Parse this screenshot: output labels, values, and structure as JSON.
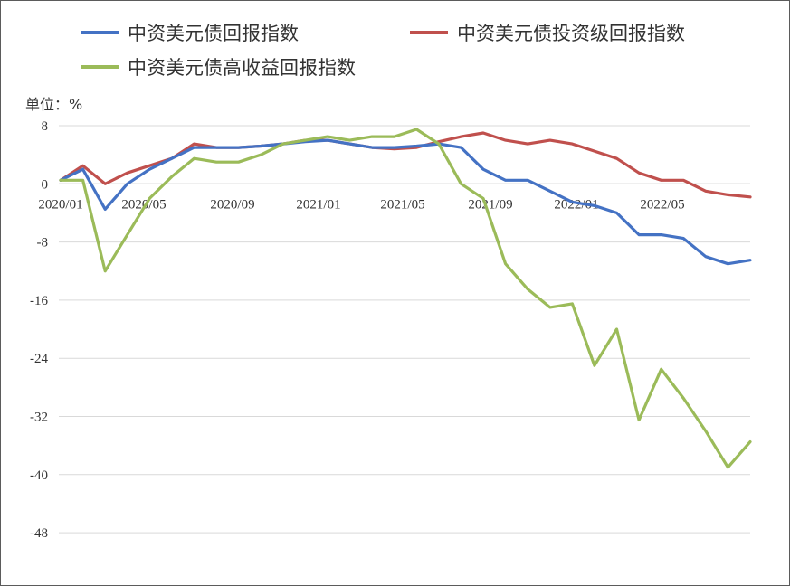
{
  "chart_data": {
    "type": "line",
    "unit_label": "单位：%",
    "x_tick_labels": [
      "2020/01",
      "2020/05",
      "2020/09",
      "2021/01",
      "2021/05",
      "2021/09",
      "2022/01",
      "2022/05"
    ],
    "y_ticks": [
      8,
      0,
      -8,
      -16,
      -24,
      -32,
      -40,
      -48
    ],
    "ylim": [
      -48,
      8
    ],
    "grid": true,
    "legend_position": "top",
    "colors": {
      "composite": "#4472c4",
      "investment_grade": "#c0504d",
      "high_yield": "#9bbb59"
    },
    "x": [
      "2020-01",
      "2020-02",
      "2020-03",
      "2020-04",
      "2020-05",
      "2020-06",
      "2020-07",
      "2020-08",
      "2020-09",
      "2020-10",
      "2020-11",
      "2020-12",
      "2021-01",
      "2021-02",
      "2021-03",
      "2021-04",
      "2021-05",
      "2021-06",
      "2021-07",
      "2021-08",
      "2021-09",
      "2021-10",
      "2021-11",
      "2021-12",
      "2022-01",
      "2022-02",
      "2022-03",
      "2022-04",
      "2022-05",
      "2022-06",
      "2022-07",
      "2022-08"
    ],
    "series": [
      {
        "name": "中资美元债回报指数",
        "key": "composite",
        "values": [
          0.5,
          2.0,
          -3.5,
          0.0,
          2.0,
          3.5,
          5.0,
          5.0,
          5.0,
          5.2,
          5.5,
          5.8,
          6.0,
          5.5,
          5.0,
          5.0,
          5.2,
          5.5,
          5.0,
          2.0,
          0.5,
          0.5,
          -1.0,
          -2.5,
          -3.0,
          -4.0,
          -7.0,
          -7.0,
          -7.5,
          -10.0,
          -11.0,
          -10.5
        ]
      },
      {
        "name": "中资美元债投资级回报指数",
        "key": "investment_grade",
        "values": [
          0.5,
          2.5,
          0.0,
          1.5,
          2.5,
          3.5,
          5.5,
          5.0,
          5.0,
          5.2,
          5.5,
          6.0,
          6.0,
          5.5,
          5.0,
          4.8,
          5.0,
          5.8,
          6.5,
          7.0,
          6.0,
          5.5,
          6.0,
          5.5,
          4.5,
          3.5,
          1.5,
          0.5,
          0.5,
          -1.0,
          -1.5,
          -1.8
        ]
      },
      {
        "name": "中资美元债高收益回报指数",
        "key": "high_yield",
        "values": [
          0.5,
          0.5,
          -12.0,
          -7.0,
          -2.0,
          1.0,
          3.5,
          3.0,
          3.0,
          4.0,
          5.5,
          6.0,
          6.5,
          6.0,
          6.5,
          6.5,
          7.5,
          5.5,
          0.0,
          -2.0,
          -11.0,
          -14.5,
          -17.0,
          -16.5,
          -25.0,
          -20.0,
          -32.5,
          -25.5,
          -29.5,
          -34.0,
          -39.0,
          -35.5
        ]
      }
    ]
  }
}
